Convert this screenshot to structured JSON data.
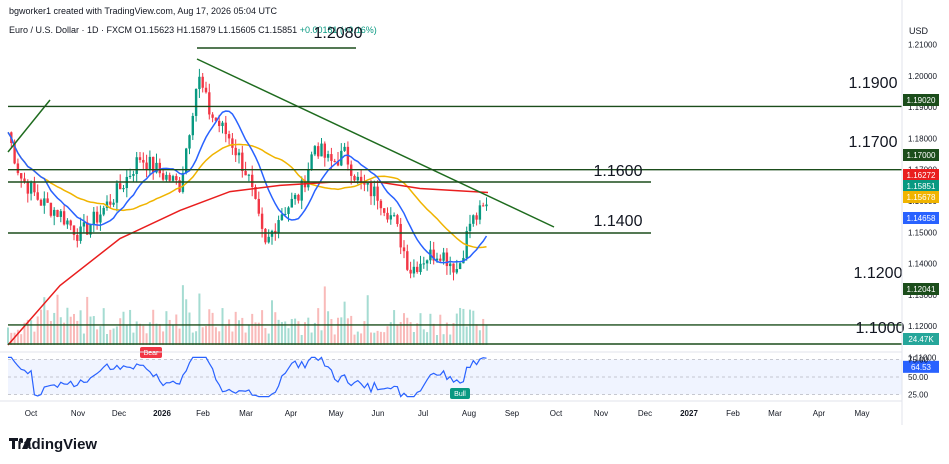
{
  "header": {
    "attribution": "bgworker1 created with TradingView.com, Aug 17, 2026 05:04 UTC",
    "symbol": "Euro / U.S. Dollar · 1D · FXCM",
    "ohlc": "O1.15623 H1.15879 L1.15605 C1.15851",
    "change": "+0.00181 (+0.16%)",
    "currency": "USD"
  },
  "footer": {
    "brand": "TradingView"
  },
  "colors": {
    "candle_up": "#089981",
    "candle_down": "#f23645",
    "ma_fast": "#2962ff",
    "ma_mid": "#f0b400",
    "ma_slow": "#e91e1e",
    "trendline": "#1e6b1e",
    "hline": "#1b4d1b",
    "rsi": "#2962ff",
    "rsi_band": "#2962ff"
  },
  "chart_data": [
    {
      "type": "candlestick",
      "title": "Euro / U.S. Dollar · 1D · FXCM",
      "ylim": [
        1.095,
        1.215
      ],
      "y_ticks": [
        "1.21000",
        "1.20000",
        "1.19000",
        "1.18000",
        "1.17000",
        "1.16000",
        "1.15000",
        "1.14000",
        "1.13000",
        "1.12000",
        "1.11000"
      ],
      "x_ticks": [
        "Oct",
        "Nov",
        "Dec",
        "2026",
        "Feb",
        "Mar",
        "Apr",
        "May",
        "Jun",
        "Jul",
        "Aug",
        "Sep",
        "Oct",
        "Nov",
        "Dec",
        "2027",
        "Feb",
        "Mar",
        "Apr",
        "May"
      ],
      "closes_monthly_approx": [
        {
          "x": "Oct",
          "y": 1.17
        },
        {
          "x": "Nov",
          "y": 1.155
        },
        {
          "x": "Dec",
          "y": 1.168
        },
        {
          "x": "2026",
          "y": 1.173
        },
        {
          "x": "Feb",
          "y": 1.195
        },
        {
          "x": "Mar",
          "y": 1.158
        },
        {
          "x": "Apr",
          "y": 1.164
        },
        {
          "x": "May",
          "y": 1.172
        },
        {
          "x": "Jun",
          "y": 1.158
        },
        {
          "x": "Jul",
          "y": 1.14
        },
        {
          "x": "Aug",
          "y": 1.1585
        }
      ],
      "horizontal_levels": [
        {
          "value": 1.208,
          "label": "1.2080"
        },
        {
          "value": 1.19,
          "label": "1.1900"
        },
        {
          "value": 1.17,
          "label": "1.1700"
        },
        {
          "value": 1.16,
          "label": "1.1600"
        },
        {
          "value": 1.14,
          "label": "1.1400"
        },
        {
          "value": 1.12,
          "label": "1.1200"
        },
        {
          "value": 1.1,
          "label": "1.1000"
        }
      ],
      "price_labels": [
        {
          "value": 1.1902,
          "text": "1.19020",
          "color": "#1b4d1b"
        },
        {
          "value": 1.17,
          "text": "1.17000",
          "color": "#1b4d1b"
        },
        {
          "value": 1.16272,
          "text": "1.16272",
          "color": "#e91e1e"
        },
        {
          "value": 1.15851,
          "text": "1.15851",
          "color": "#089981"
        },
        {
          "value": 1.15678,
          "text": "1.15678",
          "color": "#f0b400"
        },
        {
          "value": 1.14658,
          "text": "1.14658",
          "color": "#2962ff"
        },
        {
          "value": 1.12041,
          "text": "1.12041",
          "color": "#1b4d1b"
        }
      ],
      "volume_label": "24.47K",
      "moving_averages": [
        {
          "name": "MA fast",
          "color": "#2962ff"
        },
        {
          "name": "MA mid",
          "color": "#f0b400"
        },
        {
          "name": "MA slow",
          "color": "#e91e1e"
        }
      ]
    },
    {
      "type": "line",
      "title": "RSI",
      "ylim": [
        20,
        80
      ],
      "y_ticks": [
        "75.00",
        "50.00",
        "25.00"
      ],
      "last_value": "64.53",
      "annotations": [
        {
          "text": "Bear"
        },
        {
          "text": "Bull"
        }
      ]
    }
  ]
}
